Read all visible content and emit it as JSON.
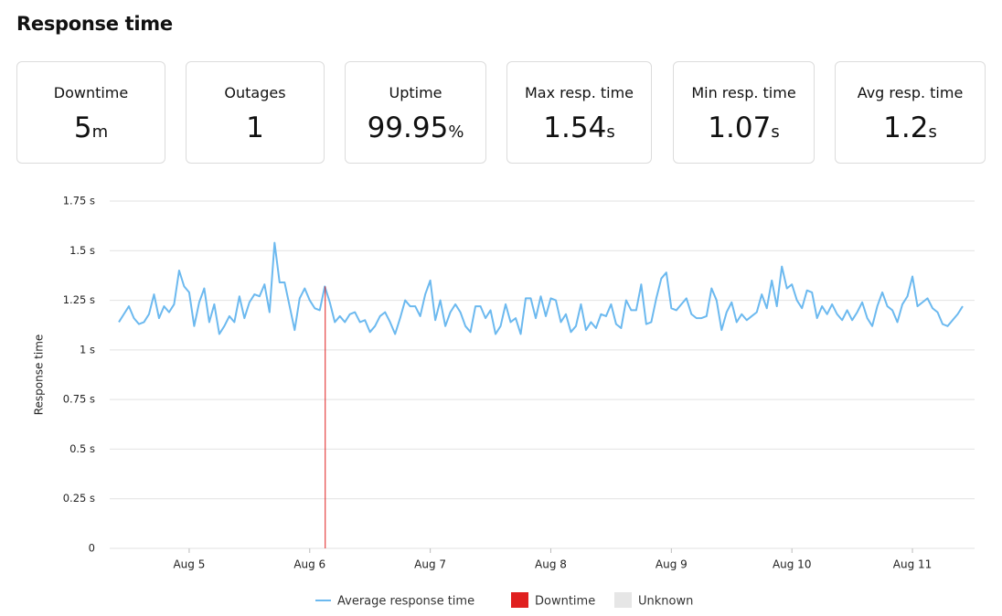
{
  "header": {
    "title": "Response time"
  },
  "cards": [
    {
      "label": "Downtime",
      "value": 5,
      "unit": "m"
    },
    {
      "label": "Outages",
      "value": 1
    },
    {
      "label": "Uptime",
      "value": 99.95,
      "unit": "%"
    },
    {
      "label": "Max resp. time",
      "value": 1.54,
      "unit": "s"
    },
    {
      "label": "Min resp. time",
      "value": 1.07,
      "unit": "s"
    },
    {
      "label": "Avg resp. time",
      "value": 1.2,
      "unit": "s"
    }
  ],
  "chart_data": {
    "type": "line",
    "ylabel": "Response time",
    "grid": true,
    "ylim": [
      0,
      1.75
    ],
    "yticks": [
      0,
      {
        "value": 0.25,
        "label": "0.25 s"
      },
      {
        "value": 0.5,
        "label": "0.5 s"
      },
      {
        "value": 0.75,
        "label": "0.75 s"
      },
      {
        "value": 1,
        "label": "1 s"
      },
      {
        "value": 1.25,
        "label": "1.25 s"
      },
      {
        "value": 1.5,
        "label": "1.5 s"
      },
      {
        "value": 1.75,
        "label": "1.75 s"
      }
    ],
    "categories": [
      null,
      null,
      null,
      null,
      null,
      null,
      null,
      null,
      null,
      null,
      null,
      null,
      null,
      null,
      "Aug 5",
      null,
      null,
      null,
      null,
      null,
      null,
      null,
      null,
      null,
      null,
      null,
      null,
      null,
      null,
      null,
      null,
      null,
      null,
      null,
      null,
      null,
      null,
      null,
      "Aug 6",
      null,
      null,
      null,
      null,
      null,
      null,
      null,
      null,
      null,
      null,
      null,
      null,
      null,
      null,
      null,
      null,
      null,
      null,
      null,
      null,
      null,
      null,
      null,
      "Aug 7",
      null,
      null,
      null,
      null,
      null,
      null,
      null,
      null,
      null,
      null,
      null,
      null,
      null,
      null,
      null,
      null,
      null,
      null,
      null,
      null,
      null,
      null,
      null,
      "Aug 8",
      null,
      null,
      null,
      null,
      null,
      null,
      null,
      null,
      null,
      null,
      null,
      null,
      null,
      null,
      null,
      null,
      null,
      null,
      null,
      null,
      null,
      null,
      null,
      "Aug 9",
      null,
      null,
      null,
      null,
      null,
      null,
      null,
      null,
      null,
      null,
      null,
      null,
      null,
      null,
      null,
      null,
      null,
      null,
      null,
      null,
      null,
      null,
      null,
      "Aug 10",
      null,
      null,
      null,
      null,
      null,
      null,
      null,
      null,
      null,
      null,
      null,
      null,
      null,
      null,
      null,
      null,
      null,
      null,
      null,
      null,
      null,
      null,
      null,
      "Aug 11",
      null,
      null,
      null,
      null,
      null,
      null,
      null,
      null,
      null,
      null
    ],
    "series": [
      {
        "name": "Average response time",
        "color": "#6cb9ef",
        "values": [
          1.14,
          1.18,
          1.22,
          1.16,
          1.13,
          1.14,
          1.18,
          1.28,
          1.16,
          1.22,
          1.19,
          1.23,
          1.4,
          1.32,
          1.29,
          1.12,
          1.24,
          1.31,
          1.14,
          1.23,
          1.08,
          1.12,
          1.17,
          1.14,
          1.27,
          1.16,
          1.24,
          1.28,
          1.27,
          1.33,
          1.19,
          1.54,
          1.34,
          1.34,
          1.22,
          1.1,
          1.26,
          1.31,
          1.25,
          1.21,
          1.2,
          1.32,
          1.24,
          1.14,
          1.17,
          1.14,
          1.18,
          1.19,
          1.14,
          1.15,
          1.09,
          1.12,
          1.17,
          1.19,
          1.14,
          1.08,
          1.16,
          1.25,
          1.22,
          1.22,
          1.17,
          1.28,
          1.35,
          1.15,
          1.25,
          1.12,
          1.19,
          1.23,
          1.19,
          1.12,
          1.09,
          1.22,
          1.22,
          1.16,
          1.2,
          1.08,
          1.12,
          1.23,
          1.14,
          1.16,
          1.08,
          1.26,
          1.26,
          1.16,
          1.27,
          1.17,
          1.26,
          1.25,
          1.14,
          1.18,
          1.09,
          1.12,
          1.23,
          1.1,
          1.14,
          1.11,
          1.18,
          1.17,
          1.23,
          1.13,
          1.11,
          1.25,
          1.2,
          1.2,
          1.33,
          1.13,
          1.14,
          1.26,
          1.36,
          1.39,
          1.21,
          1.2,
          1.23,
          1.26,
          1.18,
          1.16,
          1.16,
          1.17,
          1.31,
          1.25,
          1.1,
          1.19,
          1.24,
          1.14,
          1.18,
          1.15,
          1.17,
          1.19,
          1.28,
          1.21,
          1.35,
          1.22,
          1.42,
          1.31,
          1.33,
          1.25,
          1.21,
          1.3,
          1.29,
          1.16,
          1.22,
          1.18,
          1.23,
          1.18,
          1.15,
          1.2,
          1.15,
          1.19,
          1.24,
          1.16,
          1.12,
          1.22,
          1.29,
          1.22,
          1.2,
          1.14,
          1.23,
          1.27,
          1.37,
          1.22,
          1.24,
          1.26,
          1.21,
          1.19,
          1.13,
          1.12,
          1.15,
          1.18,
          1.22
        ]
      },
      {
        "name": "Downtime",
        "color": "#e0201f",
        "positions": [
          41
        ]
      },
      {
        "name": "Unknown",
        "color": "#e6e6e6"
      }
    ]
  }
}
